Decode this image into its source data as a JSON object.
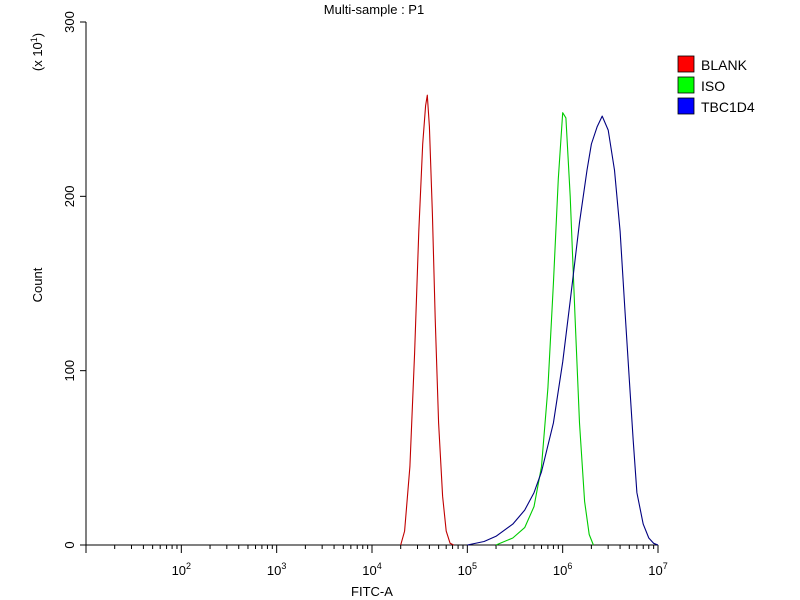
{
  "chart_data": {
    "type": "line",
    "title": "Multi-sample : P1",
    "xlabel": "FITC-A",
    "ylabel": "Count",
    "y_multiplier": {
      "prefix": "(x 10",
      "exp": "1",
      "suffix": ")"
    },
    "x_scale": "log",
    "xlim": [
      10,
      10000000
    ],
    "ylim": [
      0,
      300
    ],
    "x_ticks": [
      {
        "base": "10",
        "exp": "2",
        "value": 100
      },
      {
        "base": "10",
        "exp": "3",
        "value": 1000
      },
      {
        "base": "10",
        "exp": "4",
        "value": 10000
      },
      {
        "base": "10",
        "exp": "5",
        "value": 100000
      },
      {
        "base": "10",
        "exp": "6",
        "value": 1000000
      },
      {
        "base": "10",
        "exp": "7",
        "value": 10000000
      }
    ],
    "y_ticks": [
      "0",
      "100",
      "200",
      "300"
    ],
    "legend_position": "right",
    "series": [
      {
        "name": "BLANK",
        "color": "#c00000",
        "swatch": "#ff0000",
        "points": [
          [
            20000,
            0
          ],
          [
            22000,
            8
          ],
          [
            25000,
            45
          ],
          [
            28000,
            110
          ],
          [
            31000,
            180
          ],
          [
            34000,
            230
          ],
          [
            36500,
            252
          ],
          [
            38000,
            258
          ],
          [
            40000,
            240
          ],
          [
            43000,
            190
          ],
          [
            46000,
            130
          ],
          [
            50000,
            70
          ],
          [
            55000,
            28
          ],
          [
            60000,
            8
          ],
          [
            66000,
            1
          ],
          [
            72000,
            0
          ]
        ]
      },
      {
        "name": "ISO",
        "color": "#00cc00",
        "swatch": "#00ff00",
        "points": [
          [
            200000,
            0
          ],
          [
            300000,
            4
          ],
          [
            400000,
            10
          ],
          [
            500000,
            22
          ],
          [
            600000,
            45
          ],
          [
            700000,
            90
          ],
          [
            800000,
            150
          ],
          [
            900000,
            210
          ],
          [
            1000000,
            248
          ],
          [
            1080000,
            245
          ],
          [
            1200000,
            200
          ],
          [
            1350000,
            130
          ],
          [
            1500000,
            70
          ],
          [
            1700000,
            25
          ],
          [
            1900000,
            6
          ],
          [
            2100000,
            0
          ]
        ]
      },
      {
        "name": "TBC1D4",
        "color": "#000080",
        "swatch": "#0000ff",
        "points": [
          [
            100000,
            0
          ],
          [
            150000,
            2
          ],
          [
            200000,
            5
          ],
          [
            300000,
            12
          ],
          [
            400000,
            20
          ],
          [
            500000,
            30
          ],
          [
            600000,
            42
          ],
          [
            800000,
            70
          ],
          [
            1000000,
            105
          ],
          [
            1200000,
            140
          ],
          [
            1500000,
            185
          ],
          [
            1800000,
            215
          ],
          [
            2000000,
            230
          ],
          [
            2300000,
            240
          ],
          [
            2600000,
            246
          ],
          [
            3000000,
            238
          ],
          [
            3500000,
            215
          ],
          [
            4000000,
            180
          ],
          [
            4500000,
            135
          ],
          [
            5000000,
            95
          ],
          [
            5500000,
            60
          ],
          [
            6000000,
            30
          ],
          [
            7000000,
            12
          ],
          [
            8000000,
            4
          ],
          [
            9000000,
            1
          ],
          [
            10000000,
            0
          ]
        ]
      }
    ]
  }
}
